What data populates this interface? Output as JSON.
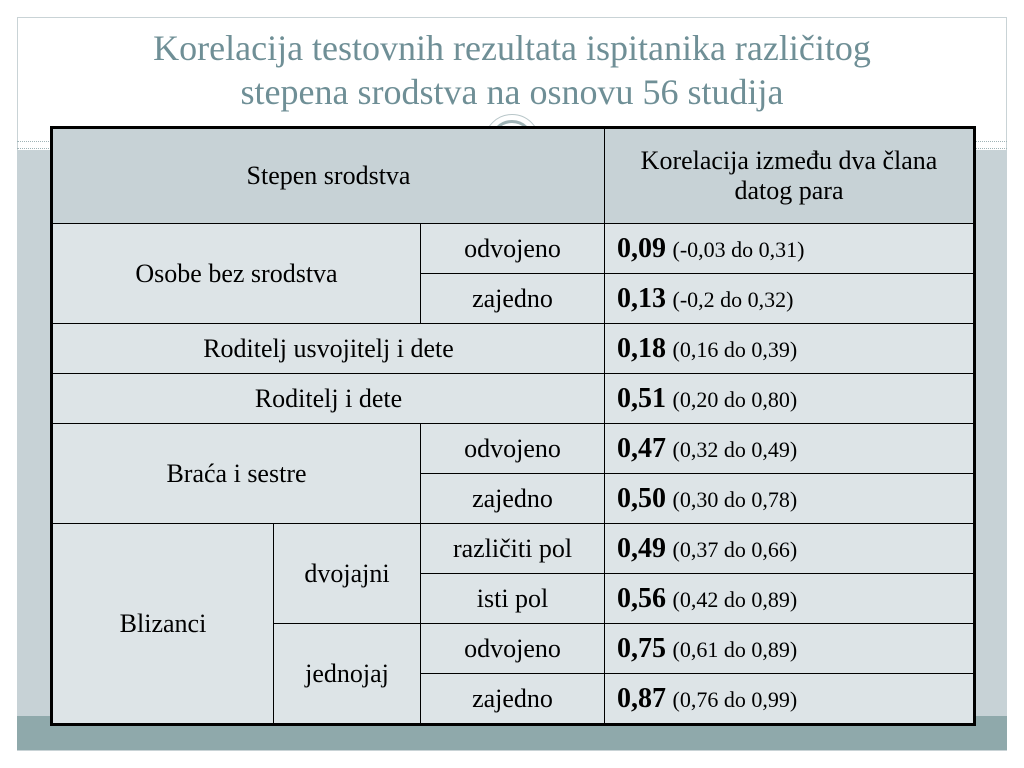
{
  "slide": {
    "title_line1": "Korelacija testovnih rezultata ispitanika različitog",
    "title_line2": "stepena srodstva na osnovu 56 studija"
  },
  "table": {
    "header": {
      "col1": "Stepen srodstva",
      "col2": "Korelacija između dva člana datog para"
    },
    "groups": {
      "osobe": "Osobe bez srodstva",
      "usvojitelj": "Roditelj usvojitelj i dete",
      "roditelj": "Roditelj i dete",
      "braca": "Braća i sestre",
      "blizanci": "Blizanci",
      "dvojajni": "dvojajni",
      "jednojaj": "jednojaj"
    },
    "rows": [
      {
        "sub": "odvojeno",
        "value": "0,09",
        "range": "(-0,03 do 0,31)"
      },
      {
        "sub": "zajedno",
        "value": "0,13",
        "range": "(-0,2 do 0,32)"
      },
      {
        "sub": "",
        "value": "0,18",
        "range": "(0,16 do 0,39)"
      },
      {
        "sub": "",
        "value": "0,51",
        "range": "(0,20 do 0,80)"
      },
      {
        "sub": "odvojeno",
        "value": "0,47",
        "range": "(0,32 do 0,49)"
      },
      {
        "sub": "zajedno",
        "value": "0,50",
        "range": "(0,30 do 0,78)"
      },
      {
        "sub": "različiti pol",
        "value": "0,49",
        "range": "(0,37 do 0,66)"
      },
      {
        "sub": "isti pol",
        "value": "0,56",
        "range": "(0,42 do 0,89)"
      },
      {
        "sub": "odvojeno",
        "value": "0,75",
        "range": "(0,61 do 0,89)"
      },
      {
        "sub": "zajedno",
        "value": "0,87",
        "range": "(0,76 do 0,99)"
      }
    ]
  }
}
